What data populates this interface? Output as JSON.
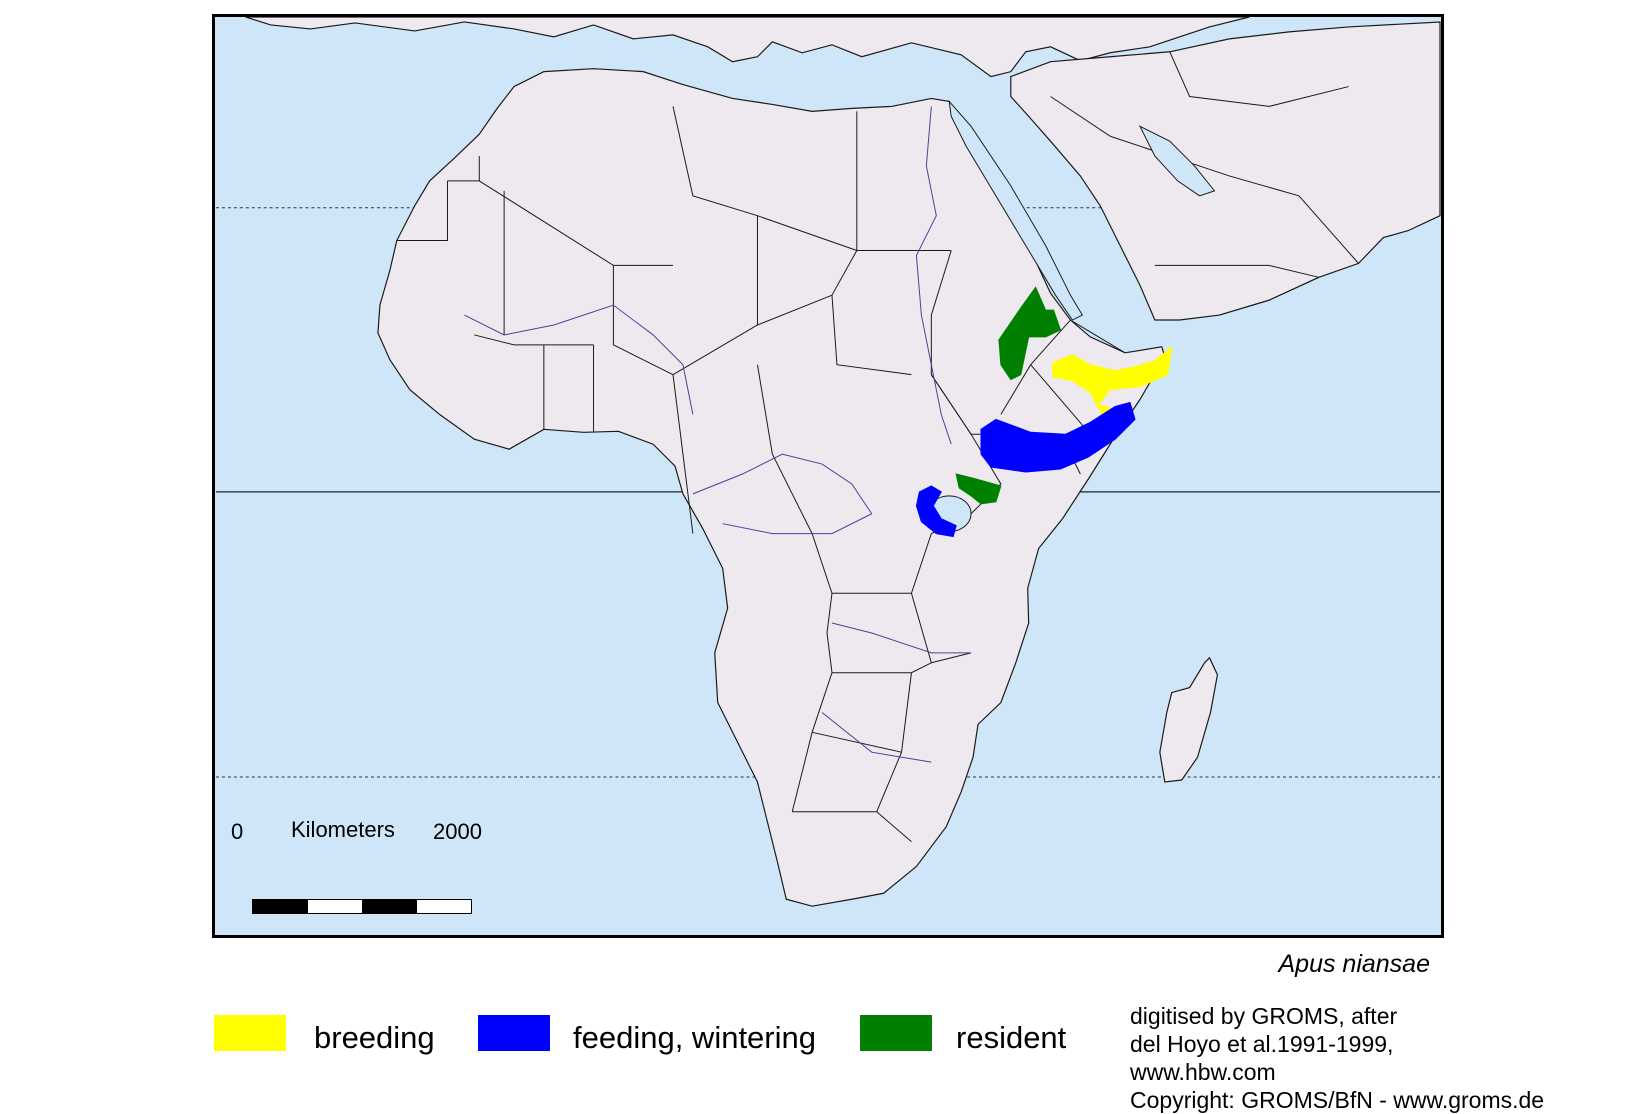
{
  "map": {
    "sea_color": "#cfe6f9",
    "land_color": "#ede9ee",
    "border_color": "#1a1a1a",
    "river_color": "#44449a"
  },
  "scale": {
    "start": "0",
    "unit": "Kilometers",
    "end": "2000"
  },
  "species_name": "Apus niansae",
  "legend": [
    {
      "label": "breeding",
      "color": "#ffff00"
    },
    {
      "label": "feeding, wintering",
      "color": "#0000ff"
    },
    {
      "label": "resident",
      "color": "#008000"
    }
  ],
  "credit": [
    "digitised by GROMS, after",
    "del Hoyo et al.1991-1999,",
    "www.hbw.com",
    "Copyright: GROMS/BfN - www.groms.de"
  ]
}
